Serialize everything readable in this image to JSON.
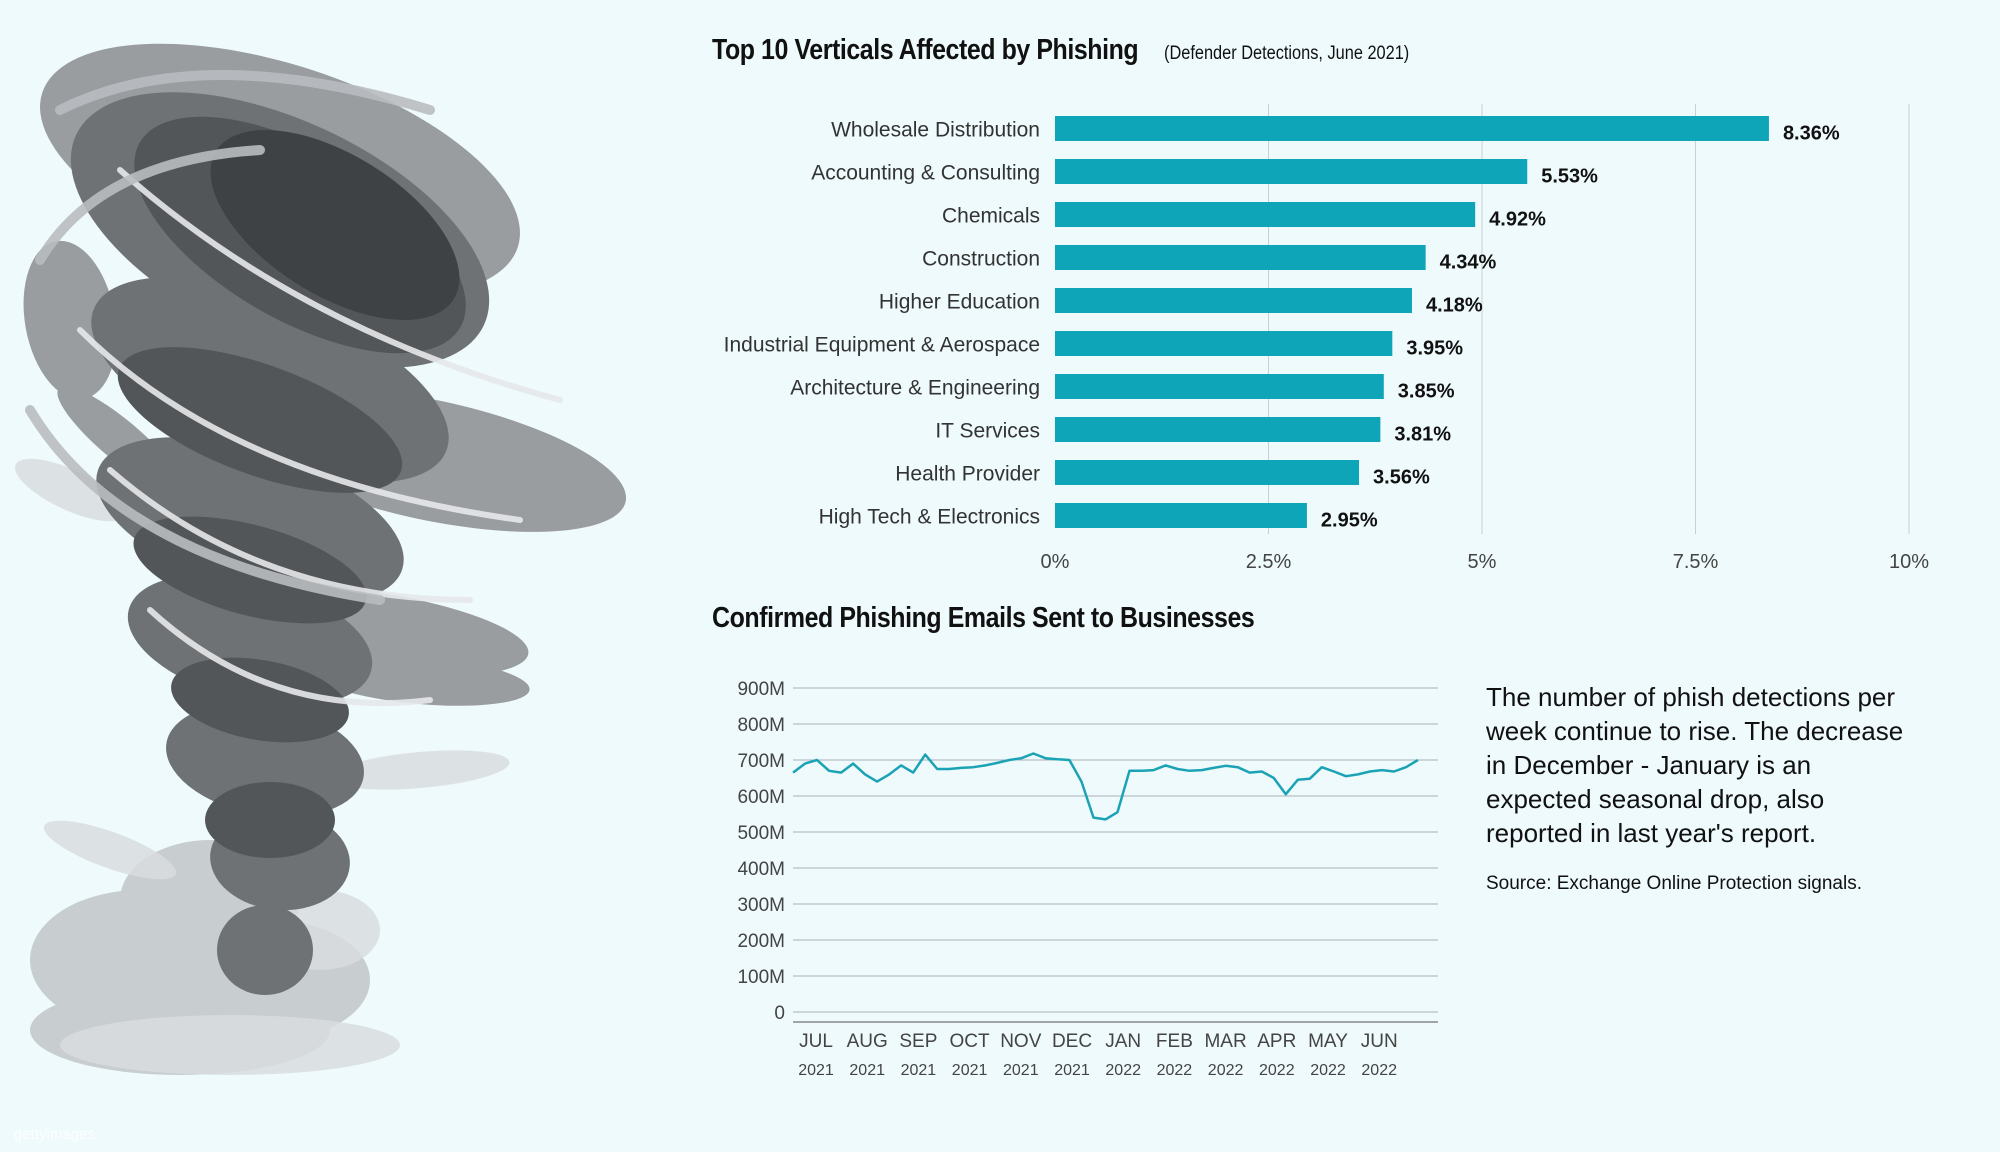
{
  "watermark": "gettyimages",
  "chart_data": [
    {
      "type": "bar",
      "orientation": "horizontal",
      "title": "Top 10 Verticals Affected by Phishing",
      "subtitle": "(Defender Detections, June 2021)",
      "categories": [
        "Wholesale Distribution",
        "Accounting & Consulting",
        "Chemicals",
        "Construction",
        "Higher Education",
        "Industrial Equipment & Aerospace",
        "Architecture & Engineering",
        "IT Services",
        "Health Provider",
        "High Tech & Electronics"
      ],
      "values": [
        8.36,
        5.53,
        4.92,
        4.34,
        4.18,
        3.95,
        3.85,
        3.81,
        3.56,
        2.95
      ],
      "value_labels": [
        "8.36%",
        "5.53%",
        "4.92%",
        "4.34%",
        "4.18%",
        "3.95%",
        "3.85%",
        "3.81%",
        "3.56%",
        "2.95%"
      ],
      "xlim": [
        0,
        10
      ],
      "xticks": [
        0,
        2.5,
        5,
        7.5,
        10
      ],
      "xtick_labels": [
        "0%",
        "2.5%",
        "5%",
        "7.5%",
        "10%"
      ],
      "grid": true,
      "bar_color": "#0ea5b8"
    },
    {
      "type": "line",
      "title": "Confirmed Phishing Emails Sent to Businesses",
      "ylim": [
        0,
        900
      ],
      "yticks": [
        0,
        100,
        200,
        300,
        400,
        500,
        600,
        700,
        800,
        900
      ],
      "ytick_labels": [
        "0",
        "100M",
        "200M",
        "300M",
        "400M",
        "500M",
        "600M",
        "700M",
        "800M",
        "900M"
      ],
      "x_months": [
        "JUL",
        "AUG",
        "SEP",
        "OCT",
        "NOV",
        "DEC",
        "JAN",
        "FEB",
        "MAR",
        "APR",
        "MAY",
        "JUN"
      ],
      "x_years": [
        "2021",
        "2021",
        "2021",
        "2021",
        "2021",
        "2021",
        "2022",
        "2022",
        "2022",
        "2022",
        "2022",
        "2022"
      ],
      "grid": true,
      "line_color": "#1ba3b5",
      "series": [
        {
          "x": [
            "2021-07-01",
            "2021-07-08",
            "2021-07-15",
            "2021-07-22",
            "2021-07-29",
            "2021-08-05",
            "2021-08-12",
            "2021-08-19",
            "2021-08-26",
            "2021-09-02",
            "2021-09-09",
            "2021-09-16",
            "2021-09-23",
            "2021-09-30",
            "2021-10-07",
            "2021-10-14",
            "2021-10-21",
            "2021-10-28",
            "2021-11-04",
            "2021-11-11",
            "2021-11-18",
            "2021-11-25",
            "2021-12-02",
            "2021-12-09",
            "2021-12-16",
            "2021-12-23",
            "2021-12-30",
            "2022-01-06",
            "2022-01-13",
            "2022-01-20",
            "2022-01-27",
            "2022-02-03",
            "2022-02-10",
            "2022-02-17",
            "2022-02-24",
            "2022-03-03",
            "2022-03-10",
            "2022-03-17",
            "2022-03-24",
            "2022-03-31",
            "2022-04-07",
            "2022-04-14",
            "2022-04-21",
            "2022-04-28",
            "2022-05-05",
            "2022-05-12",
            "2022-05-19",
            "2022-05-26",
            "2022-06-02",
            "2022-06-09",
            "2022-06-16",
            "2022-06-23",
            "2022-06-30"
          ],
          "values": [
            665,
            690,
            700,
            670,
            665,
            690,
            660,
            640,
            660,
            685,
            665,
            715,
            675,
            675,
            678,
            680,
            685,
            692,
            700,
            705,
            718,
            705,
            702,
            700,
            640,
            540,
            535,
            555,
            670,
            670,
            672,
            685,
            675,
            670,
            672,
            678,
            684,
            680,
            665,
            668,
            650,
            605,
            645,
            648,
            680,
            668,
            655,
            660,
            668,
            672,
            668,
            680,
            700
          ]
        }
      ]
    }
  ],
  "note": "The number of phish detections per week continue to rise. The decrease in December - January is an expected seasonal drop, also reported in last year's report.",
  "source": "Source: Exchange Online Protection signals."
}
